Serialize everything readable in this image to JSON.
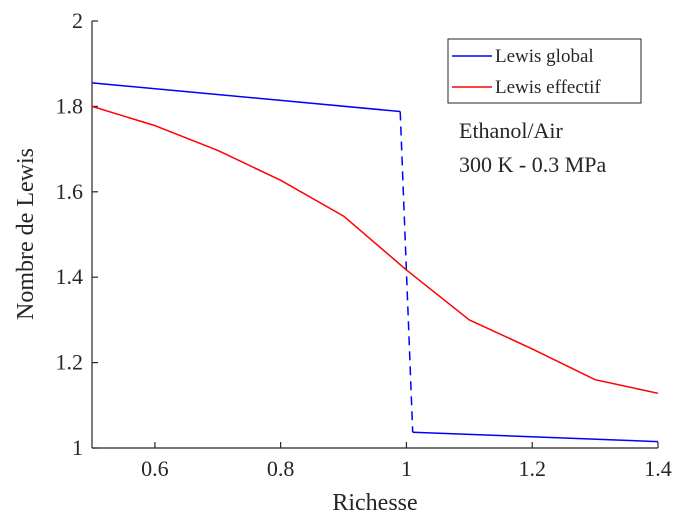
{
  "chart_data": {
    "type": "line",
    "title": "",
    "xlabel": "Richesse",
    "ylabel": "Nombre de Lewis",
    "xlim": [
      0.5,
      1.4
    ],
    "ylim": [
      1,
      2
    ],
    "x_ticks": [
      0.6,
      0.8,
      1,
      1.2,
      1.4
    ],
    "x_tick_labels": [
      "0.6",
      "0.8",
      "1",
      "1.2",
      "1.4"
    ],
    "y_ticks": [
      1,
      1.2,
      1.4,
      1.6,
      1.8,
      2
    ],
    "y_tick_labels": [
      "1",
      "1.2",
      "1.4",
      "1.6",
      "1.8",
      "2"
    ],
    "grid": false,
    "legend_position": "top-right",
    "series": [
      {
        "name": "Lewis global",
        "color": "#0000ff",
        "segments": [
          {
            "style": "solid",
            "x": [
              0.5,
              0.99
            ],
            "y": [
              1.855,
              1.788
            ]
          },
          {
            "style": "dashed",
            "x": [
              0.99,
              1.01
            ],
            "y": [
              1.788,
              1.037
            ]
          },
          {
            "style": "solid",
            "x": [
              1.01,
              1.4
            ],
            "y": [
              1.037,
              1.015
            ]
          }
        ]
      },
      {
        "name": "Lewis effectif",
        "color": "#ff0000",
        "segments": [
          {
            "style": "solid",
            "x": [
              0.5,
              0.6,
              0.7,
              0.8,
              0.9,
              1.0,
              1.1,
              1.2,
              1.3,
              1.4
            ],
            "y": [
              1.8,
              1.755,
              1.697,
              1.627,
              1.543,
              1.417,
              1.3,
              1.232,
              1.16,
              1.128
            ]
          }
        ]
      }
    ],
    "annotation": {
      "lines": [
        "Ethanol/Air",
        "300 K - 0.3 MPa"
      ]
    }
  }
}
